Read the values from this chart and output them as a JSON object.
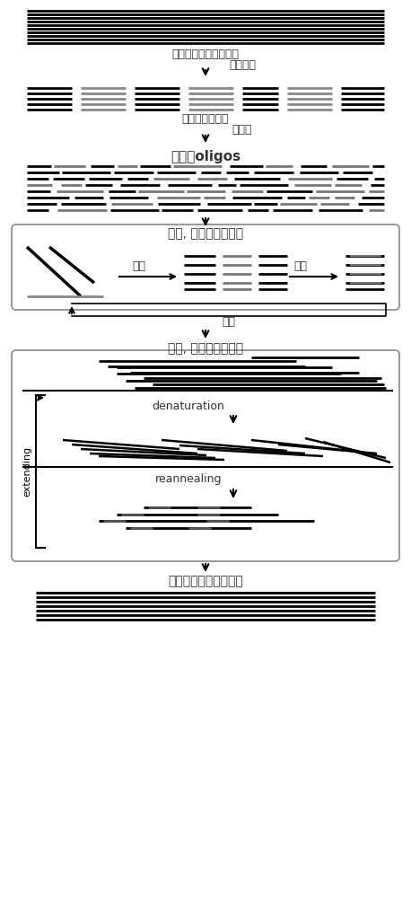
{
  "bg_color": "#ffffff",
  "line_color": "#000000",
  "gray_color": "#888888",
  "light_gray": "#aaaaaa",
  "text_color": "#333333",
  "title": "",
  "labels": {
    "step1": "密码子优化的母版序列",
    "step1b": "序列比对",
    "step2": "比对的母版序列",
    "step2b": "片断化",
    "step3": "切割成oligos",
    "step4": "变性, 退火和连接循环",
    "step4_tuihuo": "退火",
    "step4_lianjie": "连接",
    "step4_bianxing": "变性",
    "step5": "变性, 退火和延伸循环",
    "step5_denaturation": "denaturation",
    "step5_reannealing": "reannealing",
    "step5_extending": "extending",
    "step6": "组装的全长基因的扩增"
  }
}
